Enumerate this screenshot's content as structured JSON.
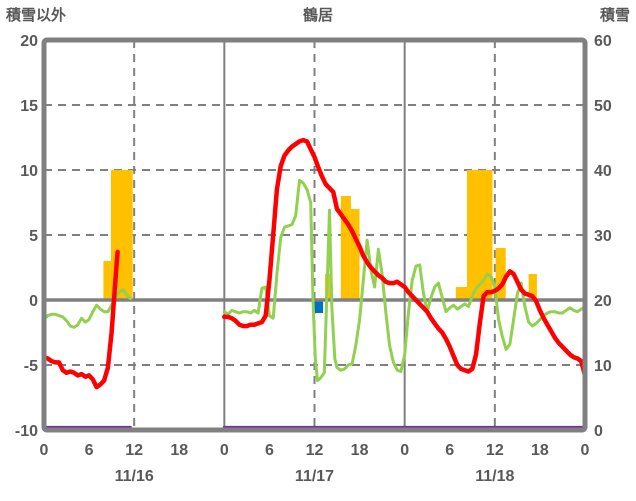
{
  "header": {
    "left_axis_title": "積雪以外",
    "title": "鶴居",
    "right_axis_title": "積雪"
  },
  "chart_data": {
    "type": "combo-bar-line",
    "title": "鶴居",
    "grid": "dashed-horizontal-every-5, dashed-vertical-at-noon, solid-vertical-at-day-boundaries",
    "left_axis": {
      "label": "積雪以外",
      "min": -10,
      "max": 20,
      "tick_step": 5,
      "ticks": [
        20,
        15,
        10,
        5,
        0,
        -5,
        -10
      ]
    },
    "right_axis": {
      "label": "積雪",
      "min": 0,
      "max": 60,
      "tick_step": 10,
      "ticks": [
        60,
        50,
        40,
        30,
        20,
        10,
        0
      ]
    },
    "x_axis": {
      "total_hours": 72,
      "days": [
        "11/16",
        "11/17",
        "11/18"
      ],
      "hour_tick_interval": 6,
      "hour_tick_labels": [
        "0",
        "6",
        "12",
        "18",
        "0",
        "6",
        "12",
        "18",
        "0",
        "6",
        "12",
        "18",
        "0"
      ]
    },
    "colors": {
      "orange_bar": "#FFC000",
      "blue_bar": "#0070C0",
      "red_line": "#FF0000",
      "green_line": "#92D050",
      "purple_line": "#7030A0",
      "axis_gray": "#808080",
      "text_gray": "#595959",
      "background": "#FFFFFF"
    },
    "bars_orange": [
      [
        7.9,
        3,
        1.0
      ],
      [
        8.9,
        10,
        2.9
      ],
      [
        37.4,
        2,
        0.8
      ],
      [
        39.5,
        8,
        1.35
      ],
      [
        40.85,
        7,
        1.15
      ],
      [
        54.8,
        1,
        1.5
      ],
      [
        56.3,
        10,
        3.4
      ],
      [
        60.1,
        4,
        1.35
      ],
      [
        64.5,
        2,
        1.1
      ]
    ],
    "bars_blue": [
      [
        35.8,
        -1,
        1.35
      ]
    ],
    "red_segments": [
      [
        [
          0,
          -4.4
        ],
        [
          0.5,
          -4.5
        ],
        [
          1,
          -4.7
        ],
        [
          1.5,
          -4.8
        ],
        [
          2,
          -4.8
        ],
        [
          2.5,
          -5.4
        ],
        [
          3,
          -5.6
        ],
        [
          3.5,
          -5.5
        ],
        [
          4,
          -5.6
        ],
        [
          4.5,
          -5.8
        ],
        [
          5,
          -5.7
        ],
        [
          5.5,
          -5.9
        ],
        [
          6,
          -5.8
        ],
        [
          6.5,
          -6.1
        ],
        [
          7,
          -6.7
        ],
        [
          7.5,
          -6.5
        ],
        [
          8,
          -6.2
        ],
        [
          8.5,
          -5.2
        ],
        [
          9,
          -2.5
        ],
        [
          9.5,
          1.5
        ],
        [
          9.8,
          3.7
        ]
      ],
      [
        [
          24,
          -1.3
        ],
        [
          24.5,
          -1.3
        ],
        [
          25,
          -1.4
        ],
        [
          25.5,
          -1.6
        ],
        [
          26,
          -1.9
        ],
        [
          26.5,
          -2.0
        ],
        [
          27,
          -2.0
        ],
        [
          27.5,
          -1.9
        ],
        [
          28,
          -1.9
        ],
        [
          28.5,
          -1.8
        ],
        [
          29,
          -1.7
        ],
        [
          29.5,
          -1.2
        ],
        [
          30,
          1.5
        ],
        [
          30.5,
          5.0
        ],
        [
          31,
          8.5
        ],
        [
          31.5,
          10.3
        ],
        [
          32,
          11.1
        ],
        [
          32.5,
          11.5
        ],
        [
          33,
          11.8
        ],
        [
          33.5,
          12.0
        ],
        [
          34,
          12.2
        ],
        [
          34.5,
          12.3
        ],
        [
          35,
          12.2
        ],
        [
          35.5,
          11.6
        ],
        [
          36,
          11.0
        ],
        [
          36.5,
          10.2
        ],
        [
          37,
          9.5
        ],
        [
          37.5,
          8.9
        ],
        [
          38,
          8.6
        ],
        [
          38.5,
          8.3
        ],
        [
          39,
          7.0
        ],
        [
          39.5,
          6.6
        ],
        [
          40,
          6.2
        ],
        [
          40.5,
          5.8
        ],
        [
          41,
          5.3
        ],
        [
          41.5,
          4.7
        ],
        [
          42,
          4.1
        ],
        [
          42.5,
          3.4
        ],
        [
          43,
          2.9
        ],
        [
          43.5,
          2.5
        ],
        [
          44,
          2.2
        ],
        [
          44.5,
          1.9
        ],
        [
          45,
          1.7
        ],
        [
          45.5,
          1.4
        ],
        [
          46,
          1.3
        ],
        [
          46.5,
          1.3
        ],
        [
          47,
          1.4
        ],
        [
          47.5,
          1.2
        ],
        [
          48,
          1.0
        ],
        [
          48.5,
          0.6
        ],
        [
          49,
          0.3
        ],
        [
          49.5,
          0.0
        ],
        [
          50,
          -0.3
        ],
        [
          50.5,
          -0.6
        ],
        [
          51,
          -0.9
        ],
        [
          51.5,
          -1.4
        ],
        [
          52,
          -1.8
        ],
        [
          52.5,
          -2.2
        ],
        [
          53,
          -2.5
        ],
        [
          53.5,
          -3.0
        ],
        [
          54,
          -3.6
        ],
        [
          54.5,
          -4.3
        ],
        [
          55,
          -5.0
        ],
        [
          55.5,
          -5.3
        ],
        [
          56,
          -5.4
        ],
        [
          56.5,
          -5.5
        ],
        [
          57,
          -5.3
        ],
        [
          57.5,
          -4.2
        ],
        [
          58,
          -1.8
        ],
        [
          58.5,
          0.3
        ],
        [
          59,
          0.6
        ],
        [
          59.5,
          0.6
        ],
        [
          60,
          0.7
        ],
        [
          60.5,
          0.9
        ],
        [
          61,
          1.2
        ],
        [
          61.5,
          1.8
        ],
        [
          62,
          2.2
        ],
        [
          62.5,
          2.0
        ],
        [
          63,
          1.4
        ],
        [
          63.5,
          0.8
        ],
        [
          64,
          0.5
        ],
        [
          64.5,
          0.4
        ],
        [
          65,
          0.3
        ],
        [
          65.5,
          -0.1
        ],
        [
          66,
          -0.8
        ],
        [
          66.5,
          -1.4
        ],
        [
          67,
          -1.9
        ],
        [
          67.5,
          -2.4
        ],
        [
          68,
          -2.9
        ],
        [
          68.5,
          -3.3
        ],
        [
          69,
          -3.6
        ],
        [
          69.5,
          -3.9
        ],
        [
          70,
          -4.2
        ],
        [
          70.5,
          -4.4
        ],
        [
          71,
          -4.5
        ],
        [
          71.5,
          -4.7
        ],
        [
          72,
          -5.8
        ]
      ]
    ],
    "green_segments": [
      [
        [
          0,
          -1.5
        ],
        [
          0.5,
          -1.2
        ],
        [
          1,
          -1.1
        ],
        [
          1.5,
          -1.1
        ],
        [
          2,
          -1.2
        ],
        [
          2.5,
          -1.3
        ],
        [
          3,
          -1.6
        ],
        [
          3.5,
          -2.0
        ],
        [
          4,
          -2.1
        ],
        [
          4.5,
          -1.9
        ],
        [
          5,
          -1.4
        ],
        [
          5.5,
          -1.7
        ],
        [
          6,
          -1.5
        ],
        [
          6.5,
          -0.9
        ],
        [
          7,
          -0.4
        ],
        [
          7.5,
          -0.7
        ],
        [
          8,
          -0.9
        ],
        [
          8.5,
          -0.9
        ],
        [
          9,
          -0.4
        ],
        [
          9.5,
          0.2
        ],
        [
          10,
          0.6
        ],
        [
          10.5,
          0.8
        ],
        [
          11,
          0.4
        ],
        [
          11.5,
          0.1
        ]
      ],
      [
        [
          24,
          -0.9
        ],
        [
          24.5,
          -1.1
        ],
        [
          25,
          -0.8
        ],
        [
          25.5,
          -0.9
        ],
        [
          26,
          -1.0
        ],
        [
          26.5,
          -0.9
        ],
        [
          27,
          -0.9
        ],
        [
          27.5,
          -1.0
        ],
        [
          28,
          -0.8
        ],
        [
          28.5,
          -1.0
        ],
        [
          29,
          0.9
        ],
        [
          29.5,
          1.0
        ],
        [
          30,
          -1.2
        ],
        [
          30.5,
          -1.4
        ],
        [
          31,
          2.0
        ],
        [
          31.5,
          4.8
        ],
        [
          32,
          5.6
        ],
        [
          32.5,
          5.7
        ],
        [
          33,
          5.8
        ],
        [
          33.5,
          6.5
        ],
        [
          34,
          9.2
        ],
        [
          34.5,
          9.0
        ],
        [
          35,
          8.5
        ],
        [
          35.5,
          7.5
        ],
        [
          35.8,
          0.0
        ],
        [
          36.1,
          -4.5
        ],
        [
          36.4,
          -6.2
        ],
        [
          36.8,
          -6.0
        ],
        [
          37.3,
          -5.6
        ],
        [
          37.7,
          1.5
        ],
        [
          38.0,
          6.9
        ],
        [
          38.3,
          -0.5
        ],
        [
          38.7,
          -4.5
        ],
        [
          39,
          -5.2
        ],
        [
          39.5,
          -5.4
        ],
        [
          40,
          -5.3
        ],
        [
          40.5,
          -5.0
        ],
        [
          41,
          -4.9
        ],
        [
          41.5,
          -3.5
        ],
        [
          42,
          -1.5
        ],
        [
          42.5,
          1.5
        ],
        [
          43,
          4.6
        ],
        [
          43.5,
          2.3
        ],
        [
          44,
          1.0
        ],
        [
          44.5,
          3.9
        ],
        [
          45,
          2.0
        ],
        [
          45.5,
          -1.0
        ],
        [
          46,
          -3.5
        ],
        [
          46.5,
          -4.8
        ],
        [
          47,
          -5.4
        ],
        [
          47.5,
          -5.5
        ],
        [
          48,
          -4.2
        ],
        [
          48.5,
          -1.0
        ],
        [
          49,
          1.5
        ],
        [
          49.5,
          2.6
        ],
        [
          50,
          2.7
        ],
        [
          50.5,
          0.5
        ],
        [
          51,
          -0.9
        ],
        [
          51.5,
          0.2
        ],
        [
          52,
          1.0
        ],
        [
          52.5,
          1.3
        ],
        [
          53,
          0.2
        ],
        [
          53.5,
          -0.9
        ],
        [
          54,
          -0.6
        ],
        [
          54.5,
          -0.4
        ],
        [
          55,
          -0.7
        ],
        [
          55.5,
          -0.5
        ],
        [
          56,
          -0.3
        ],
        [
          56.5,
          -0.5
        ],
        [
          57,
          0.3
        ],
        [
          57.5,
          0.9
        ],
        [
          58,
          1.2
        ],
        [
          58.5,
          1.5
        ],
        [
          59,
          2.0
        ],
        [
          59.5,
          1.8
        ],
        [
          60,
          1.0
        ],
        [
          60.5,
          -1.5
        ],
        [
          61,
          -2.8
        ],
        [
          61.5,
          -3.8
        ],
        [
          62,
          -3.4
        ],
        [
          62.5,
          -1.5
        ],
        [
          63,
          0.5
        ],
        [
          63.5,
          1.3
        ],
        [
          64,
          -0.5
        ],
        [
          64.5,
          -1.7
        ],
        [
          65,
          -2.0
        ],
        [
          65.5,
          -1.8
        ],
        [
          66,
          -1.5
        ],
        [
          66.5,
          -1.2
        ],
        [
          67,
          -1.0
        ],
        [
          67.5,
          -0.9
        ],
        [
          68,
          -0.9
        ],
        [
          68.5,
          -1.0
        ],
        [
          69,
          -1.0
        ],
        [
          69.5,
          -0.8
        ],
        [
          70,
          -0.6
        ],
        [
          70.5,
          -0.8
        ],
        [
          71,
          -0.9
        ],
        [
          71.5,
          -0.7
        ],
        [
          72,
          -0.6
        ]
      ]
    ],
    "purple_segments": [
      [
        [
          0,
          -9.8
        ],
        [
          11.5,
          -9.8
        ]
      ],
      [
        [
          24,
          -9.8
        ],
        [
          72,
          -9.8
        ]
      ]
    ]
  }
}
